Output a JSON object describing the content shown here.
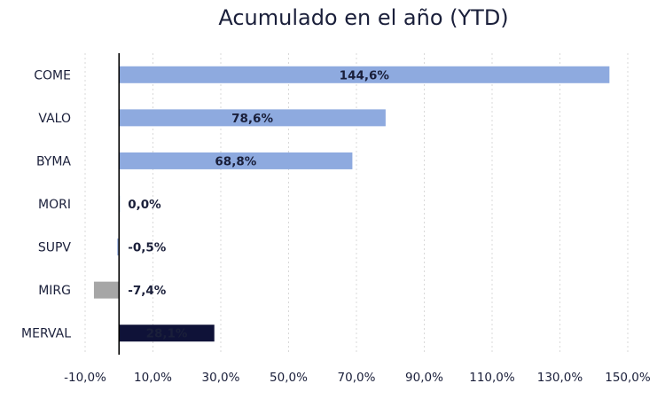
{
  "chart_data": {
    "type": "bar",
    "orientation": "horizontal",
    "title": "Acumulado en el año (YTD)",
    "xlabel": "",
    "ylabel": "",
    "categories": [
      "COME",
      "VALO",
      "BYMA",
      "MORI",
      "SUPV",
      "MIRG",
      "MERVAL"
    ],
    "values": [
      144.6,
      78.6,
      68.8,
      0.0,
      -0.5,
      -7.4,
      28.1
    ],
    "value_labels": [
      "144,6%",
      "78,6%",
      "68,8%",
      "0,0%",
      "-0,5%",
      "-7,4%",
      "28,1%"
    ],
    "bar_colors": [
      "#8eaadf",
      "#8eaadf",
      "#8eaadf",
      "#8eaadf",
      "#8eaadf",
      "#a6a6a6",
      "#0f1238"
    ],
    "label_colors": [
      "#1a1f3a",
      "#1a1f3a",
      "#1a1f3a",
      "#1a1f3a",
      "#1a1f3a",
      "#1a1f3a",
      "#ffffff"
    ],
    "xlim": [
      -10,
      150
    ],
    "xticks": [
      -10,
      10,
      30,
      50,
      70,
      90,
      110,
      130,
      150
    ],
    "xtick_labels": [
      "-10,0%",
      "10,0%",
      "30,0%",
      "50,0%",
      "70,0%",
      "90,0%",
      "110,0%",
      "130,0%",
      "150,0%"
    ],
    "grid": true,
    "legend": "none"
  }
}
